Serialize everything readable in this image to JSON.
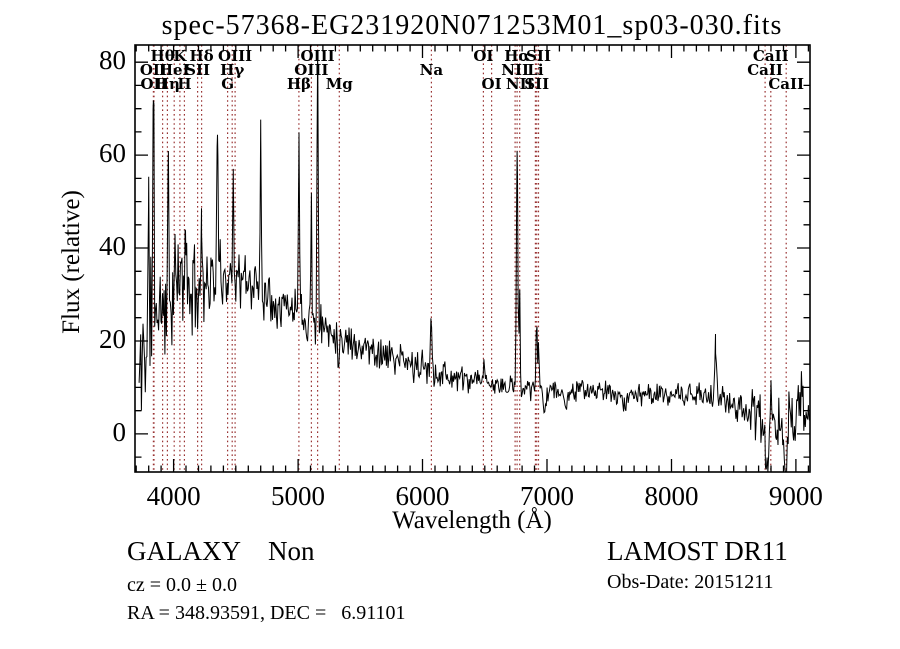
{
  "title": "spec-57368-EG231920N071253M01_sp03-030.fits",
  "annotations": {
    "class_label": "GALAXY",
    "subclass_label": "Non",
    "cz_line": "cz = 0.0 ± 0.0",
    "radec_line": "RA = 348.93591, DEC =   6.91101",
    "survey": "LAMOST DR11",
    "obs_date": "Obs-Date: 20151211"
  },
  "chart_data": {
    "type": "line",
    "title": "spec-57368-EG231920N071253M01_sp03-030.fits",
    "xlabel": "Wavelength (Å)",
    "ylabel": "Flux (relative)",
    "xlim": [
      3690,
      9113
    ],
    "ylim": [
      -8.2,
      83.7
    ],
    "x_ticks": [
      4000,
      5000,
      6000,
      7000,
      8000,
      9000
    ],
    "y_ticks": [
      0,
      20,
      40,
      60,
      80
    ],
    "x_minor_step": 100,
    "y_minor_step": 5,
    "grid": false,
    "legend": "none",
    "line_color": "#000000",
    "marker_color": "#993333",
    "spectral_lines": [
      {
        "label": "OII",
        "wavelength": 3838,
        "row": 2
      },
      {
        "label": "OII",
        "wavelength": 3843,
        "row": 3
      },
      {
        "label": "Hθ",
        "wavelength": 3912,
        "row": 1
      },
      {
        "label": "Hη",
        "wavelength": 3950,
        "row": 3
      },
      {
        "label": "HeI",
        "wavelength": 4005,
        "row": 2
      },
      {
        "label": "K",
        "wavelength": 4051,
        "row": 1
      },
      {
        "label": "H",
        "wavelength": 4087,
        "row": 3
      },
      {
        "label": "SII",
        "wavelength": 4193,
        "row": 2
      },
      {
        "label": "Hδ",
        "wavelength": 4225,
        "row": 1
      },
      {
        "label": "G",
        "wavelength": 4434,
        "row": 3
      },
      {
        "label": "Hγ",
        "wavelength": 4471,
        "row": 2
      },
      {
        "label": "OIII",
        "wavelength": 4494,
        "row": 1
      },
      {
        "label": "Hβ",
        "wavelength": 5007,
        "row": 3
      },
      {
        "label": "OIII",
        "wavelength": 5107,
        "row": 2
      },
      {
        "label": "OIII",
        "wavelength": 5157,
        "row": 1
      },
      {
        "label": "Mg",
        "wavelength": 5331,
        "row": 3
      },
      {
        "label": "Na",
        "wavelength": 6071,
        "row": 2
      },
      {
        "label": "OI",
        "wavelength": 6489,
        "row": 1
      },
      {
        "label": "OI",
        "wavelength": 6555,
        "row": 3
      },
      {
        "label": "NII",
        "wavelength": 6744,
        "row": 2
      },
      {
        "label": "Hα",
        "wavelength": 6760,
        "row": 1
      },
      {
        "label": "NII",
        "wavelength": 6781,
        "row": 3
      },
      {
        "label": "Li",
        "wavelength": 6907,
        "row": 2
      },
      {
        "label": "SII",
        "wavelength": 6917,
        "row": 3
      },
      {
        "label": "SII",
        "wavelength": 6932,
        "row": 1
      },
      {
        "label": "CaII",
        "wavelength": 8752,
        "row": 2
      },
      {
        "label": "CaII",
        "wavelength": 8798,
        "row": 1
      },
      {
        "label": "CaII",
        "wavelength": 8922,
        "row": 3
      }
    ],
    "spectrum_start": 3723,
    "spectrum_samples": 860,
    "noise_seed": 11,
    "continuum": [
      [
        3725,
        10
      ],
      [
        3760,
        18
      ],
      [
        3800,
        24
      ],
      [
        3850,
        28
      ],
      [
        3900,
        27
      ],
      [
        3950,
        29
      ],
      [
        4000,
        31
      ],
      [
        4060,
        33
      ],
      [
        4130,
        30
      ],
      [
        4200,
        32
      ],
      [
        4280,
        33
      ],
      [
        4360,
        34
      ],
      [
        4450,
        34
      ],
      [
        4550,
        33
      ],
      [
        4650,
        32
      ],
      [
        4750,
        30
      ],
      [
        4850,
        28.5
      ],
      [
        4950,
        27
      ],
      [
        5050,
        25.5
      ],
      [
        5150,
        24
      ],
      [
        5250,
        22.5
      ],
      [
        5350,
        21
      ],
      [
        5450,
        19.5
      ],
      [
        5550,
        18.5
      ],
      [
        5650,
        17.5
      ],
      [
        5750,
        16.5
      ],
      [
        5850,
        15.5
      ],
      [
        5950,
        14.5
      ],
      [
        6050,
        13.8
      ],
      [
        6150,
        13
      ],
      [
        6250,
        12.2
      ],
      [
        6350,
        11.5
      ],
      [
        6450,
        11
      ],
      [
        6550,
        10.5
      ],
      [
        6650,
        10.2
      ],
      [
        6763,
        10
      ],
      [
        6880,
        9.8
      ],
      [
        7000,
        9.6
      ],
      [
        7150,
        9.2
      ],
      [
        7300,
        9.4
      ],
      [
        7450,
        9
      ],
      [
        7600,
        8.6
      ],
      [
        7750,
        8.6
      ],
      [
        7900,
        8.4
      ],
      [
        8050,
        8.2
      ],
      [
        8200,
        8.2
      ],
      [
        8354,
        8
      ],
      [
        8450,
        7
      ],
      [
        8550,
        6
      ],
      [
        8650,
        4.5
      ],
      [
        8720,
        3
      ],
      [
        8770,
        -5
      ],
      [
        8800,
        7
      ],
      [
        8830,
        -2
      ],
      [
        8870,
        3
      ],
      [
        8910,
        -6
      ],
      [
        8950,
        4
      ],
      [
        8990,
        1
      ],
      [
        9030,
        8
      ],
      [
        9070,
        3
      ],
      [
        9113,
        6
      ]
    ],
    "noise_sigma": [
      [
        3725,
        12
      ],
      [
        3800,
        9
      ],
      [
        3900,
        8
      ],
      [
        4000,
        7
      ],
      [
        4150,
        5.5
      ],
      [
        4300,
        4.5
      ],
      [
        4500,
        4
      ],
      [
        4700,
        3.5
      ],
      [
        4900,
        3.2
      ],
      [
        5100,
        3
      ],
      [
        5300,
        2.8
      ],
      [
        5500,
        2.5
      ],
      [
        5700,
        2.3
      ],
      [
        5900,
        2.2
      ],
      [
        6100,
        2
      ],
      [
        6300,
        1.8
      ],
      [
        6500,
        1.6
      ],
      [
        6700,
        1.5
      ],
      [
        6900,
        1.4
      ],
      [
        7100,
        1.3
      ],
      [
        7300,
        1.3
      ],
      [
        7500,
        1.4
      ],
      [
        7700,
        1.4
      ],
      [
        7900,
        1.4
      ],
      [
        8100,
        1.5
      ],
      [
        8300,
        1.8
      ],
      [
        8500,
        2.2
      ],
      [
        8650,
        3
      ],
      [
        8800,
        4
      ],
      [
        8950,
        4
      ],
      [
        9113,
        4.5
      ]
    ],
    "emission_features": [
      [
        3800,
        45,
        5
      ],
      [
        3838,
        72,
        5
      ],
      [
        3958,
        56,
        4
      ],
      [
        4096,
        48,
        4
      ],
      [
        4225,
        46,
        4
      ],
      [
        4353,
        68,
        4
      ],
      [
        4480,
        58,
        4
      ],
      [
        4700,
        68,
        4
      ],
      [
        5007,
        66,
        5
      ],
      [
        5107,
        50,
        4
      ],
      [
        5157,
        80,
        5
      ],
      [
        6071,
        25,
        6
      ],
      [
        6490,
        15.5,
        5
      ],
      [
        6760,
        61,
        6
      ],
      [
        6781,
        32,
        4
      ],
      [
        6917,
        23,
        5
      ],
      [
        6932,
        19,
        4
      ],
      [
        8354,
        19.5,
        6
      ]
    ],
    "absorption_features": [
      [
        5331,
        18.5,
        12
      ],
      [
        6980,
        4.5,
        8
      ],
      [
        7150,
        5,
        12
      ],
      [
        7620,
        6,
        18
      ]
    ]
  }
}
